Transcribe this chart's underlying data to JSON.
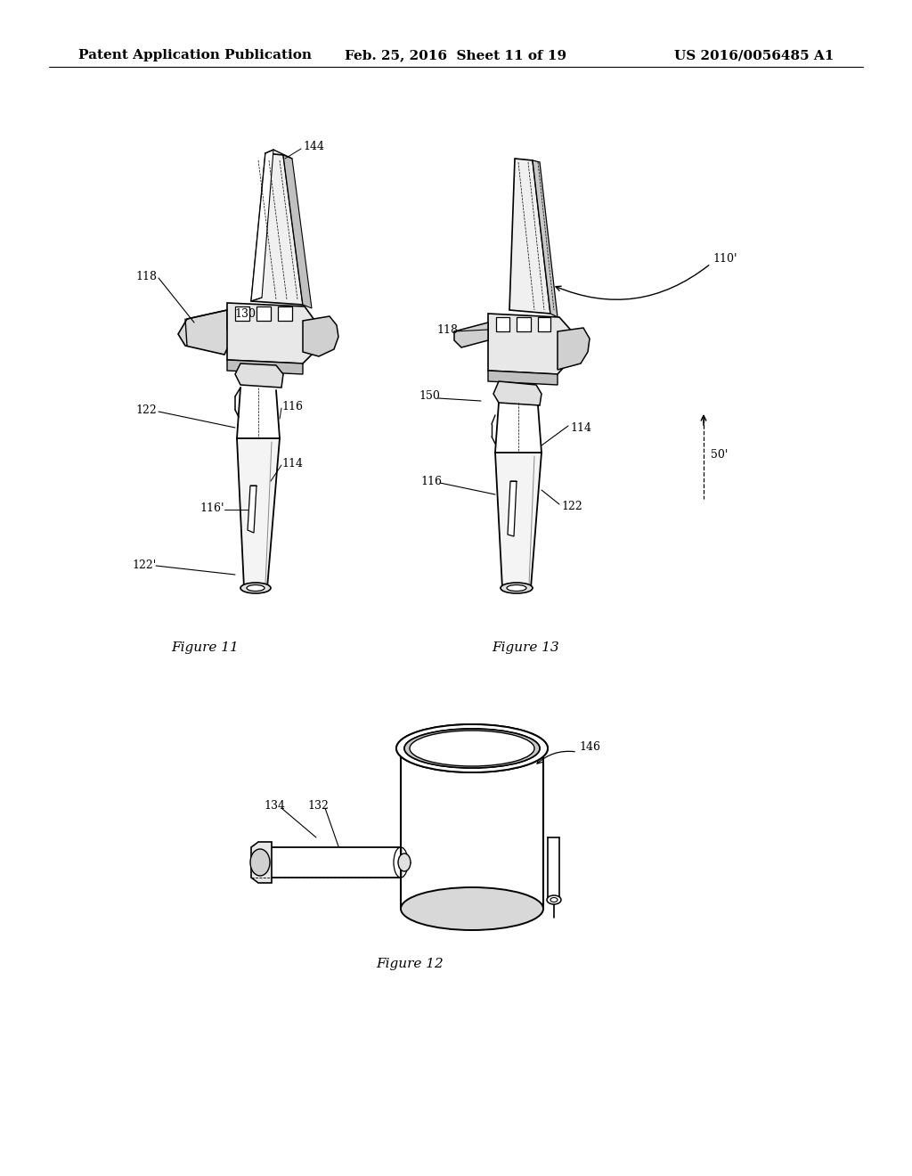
{
  "background_color": "#ffffff",
  "header_left": "Patent Application Publication",
  "header_center": "Feb. 25, 2016  Sheet 11 of 19",
  "header_right": "US 2016/0056485 A1",
  "fig_caption_11": "Figure 11",
  "fig_caption_13": "Figure 13",
  "fig_caption_12": "Figure 12",
  "line_color": "#000000",
  "text_color": "#000000",
  "gray_fill": "#d0d0d0",
  "light_gray": "#e8e8e8",
  "dark_gray": "#888888"
}
